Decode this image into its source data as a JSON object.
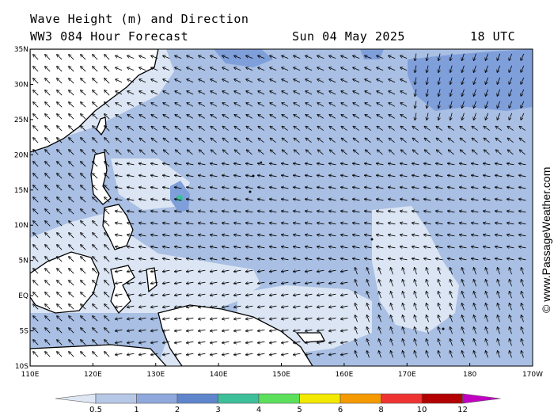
{
  "header": {
    "line1": "Wave Height (m) and Direction",
    "line2": "WW3 084 Hour Forecast",
    "date": "Sun 04 May 2025",
    "time": "18 UTC"
  },
  "axes": {
    "lat_labels": [
      "35N",
      "30N",
      "25N",
      "20N",
      "15N",
      "10N",
      "5N",
      "EQ",
      "5S",
      "10S"
    ],
    "lon_labels": [
      "110E",
      "120E",
      "130E",
      "140E",
      "150E",
      "160E",
      "170E",
      "180",
      "170W"
    ]
  },
  "legend": {
    "labels": [
      "0.5",
      "1",
      "2",
      "3",
      "4",
      "5",
      "6",
      "8",
      "10",
      "12"
    ],
    "colors": [
      "#dfe7f5",
      "#b7c8e6",
      "#8fa9dc",
      "#5f86cc",
      "#3dbf9a",
      "#5ce05c",
      "#f3e800",
      "#f59a00",
      "#ee3333",
      "#b30000",
      "#c200c2"
    ]
  },
  "credit": "© www.PassageWeather.com",
  "colors": {
    "ocean_1_2": "#a9bfe3",
    "ocean_05_1": "#dbe5f4",
    "ocean_2_3": "#7f9fdb",
    "land": "#ffffff",
    "coast": "#000000"
  }
}
